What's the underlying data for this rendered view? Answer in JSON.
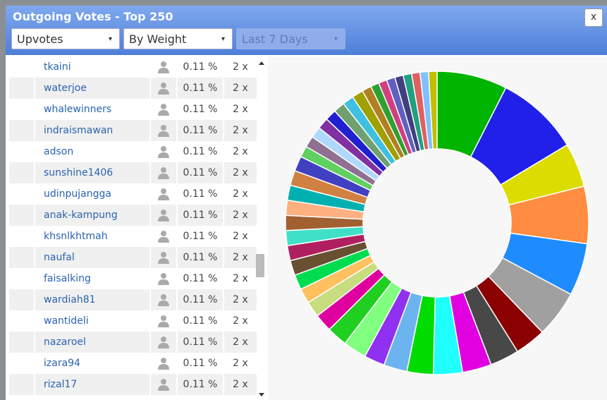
{
  "header": {
    "title": "Outgoing Votes - Top 250",
    "close": "x"
  },
  "filters": [
    "Upvotes",
    "By Weight",
    "Last 7 Days"
  ],
  "table": {
    "rows": [
      [
        "tkaini",
        "0.11 %",
        "2 x"
      ],
      [
        "waterjoe",
        "0.11 %",
        "2 x"
      ],
      [
        "whalewinners",
        "0.11 %",
        "2 x"
      ],
      [
        "indraismawan",
        "0.11 %",
        "2 x"
      ],
      [
        "adson",
        "0.11 %",
        "2 x"
      ],
      [
        "sunshine1406",
        "0.11 %",
        "2 x"
      ],
      [
        "udinpujangga",
        "0.11 %",
        "2 x"
      ],
      [
        "anak-kampung",
        "0.11 %",
        "2 x"
      ],
      [
        "khsnlkhtmah",
        "0.11 %",
        "2 x"
      ],
      [
        "naufal",
        "0.11 %",
        "2 x"
      ],
      [
        "faisalking",
        "0.11 %",
        "2 x"
      ],
      [
        "wardiah81",
        "0.11 %",
        "2 x"
      ],
      [
        "wantideli",
        "0.11 %",
        "2 x"
      ],
      [
        "nazaroel",
        "0.11 %",
        "2 x"
      ],
      [
        "izara94",
        "0.11 %",
        "2 x"
      ],
      [
        "rizal17",
        "0.11 %",
        "2 x"
      ]
    ]
  },
  "donut": {
    "values": [
      7.5,
      8.9,
      4.7,
      6.1,
      5.6,
      5.0,
      3.3,
      3.1,
      3.1,
      3.1,
      2.8,
      2.5,
      2.2,
      2.5,
      2.2,
      1.9,
      1.7,
      1.6,
      1.6,
      1.6,
      1.6,
      1.6,
      1.6,
      1.6,
      1.6,
      1.6,
      1.6,
      1.2,
      1.2,
      1.2,
      1.2,
      1.2,
      1.2,
      1.2,
      1.2,
      1.0,
      0.9,
      0.9,
      0.9,
      0.9,
      0.9,
      0.9,
      0.9,
      0.9
    ],
    "colors": [
      "#00b400",
      "#2020e8",
      "#dcdc00",
      "#ff8c40",
      "#1e8cff",
      "#a0a0a0",
      "#8b0000",
      "#484848",
      "#e000e0",
      "#20ffff",
      "#00dc00",
      "#6cb4f0",
      "#9030f0",
      "#80ff80",
      "#20d020",
      "#e000a0",
      "#c8dc80",
      "#ffc060",
      "#00dc50",
      "#685030",
      "#b02060",
      "#40e0c8",
      "#a06030",
      "#ffb080",
      "#00b0b0",
      "#d08040",
      "#4040c0",
      "#60d060",
      "#907090",
      "#b0d8ff",
      "#8030a0",
      "#2020d0",
      "#70a070",
      "#40c0e0",
      "#a0a000",
      "#b08020",
      "#30a030",
      "#d04080",
      "#6060c0",
      "#404080",
      "#20a080",
      "#e06060",
      "#80c0ff",
      "#c0c000"
    ]
  }
}
